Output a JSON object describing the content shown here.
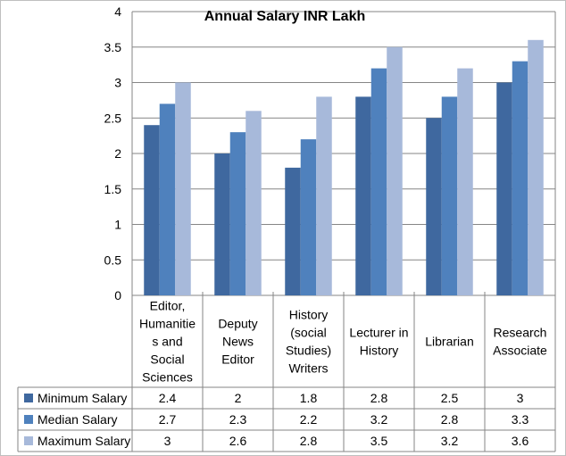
{
  "chart_data": {
    "type": "bar",
    "title": "Annual Salary INR Lakh",
    "categories": [
      [
        "Editor,",
        "Humanitie",
        "s and",
        "Social",
        "Sciences"
      ],
      [
        "Deputy",
        "News",
        "Editor"
      ],
      [
        "History",
        "(social",
        "Studies)",
        "Writers"
      ],
      [
        "Lecturer in",
        "History"
      ],
      [
        "Librarian"
      ],
      [
        "Research",
        "Associate"
      ]
    ],
    "series": [
      {
        "name": "Minimum Salary",
        "color": "#3f689f",
        "values": [
          2.4,
          2,
          1.8,
          2.8,
          2.5,
          3
        ]
      },
      {
        "name": "Median Salary",
        "color": "#4f81bd",
        "values": [
          2.7,
          2.3,
          2.2,
          3.2,
          2.8,
          3.3
        ]
      },
      {
        "name": "Maximum Salary",
        "color": "#a7b9da",
        "values": [
          3,
          2.6,
          2.8,
          3.5,
          3.2,
          3.6
        ]
      }
    ],
    "ylim": [
      0,
      4
    ],
    "yticks": [
      "0",
      "0.5",
      "1",
      "1.5",
      "2",
      "2.5",
      "3",
      "3.5",
      "4"
    ],
    "grid": true,
    "legend": "data-table-left",
    "data_table": [
      [
        "2.4",
        "2",
        "1.8",
        "2.8",
        "2.5",
        "3"
      ],
      [
        "2.7",
        "2.3",
        "2.2",
        "3.2",
        "2.8",
        "3.3"
      ],
      [
        "3",
        "2.6",
        "2.8",
        "3.5",
        "3.2",
        "3.6"
      ]
    ]
  }
}
